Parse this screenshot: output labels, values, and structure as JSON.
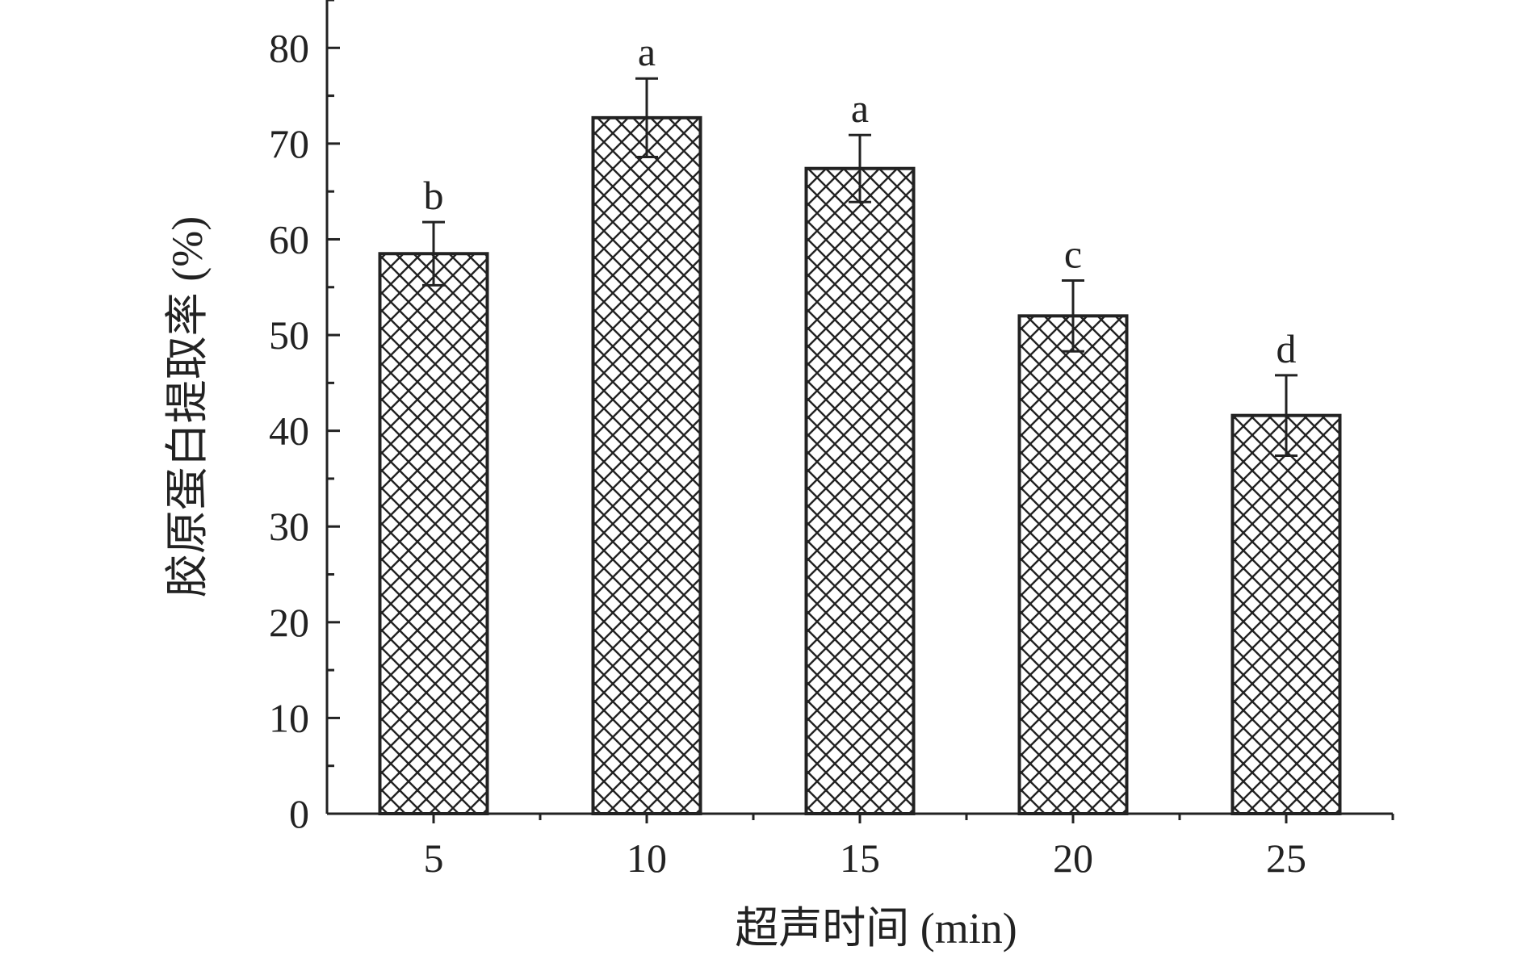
{
  "chart_data": {
    "type": "bar",
    "xlabel": "超声时间 (min)",
    "ylabel": "胶原蛋白提取率 (%)",
    "categories": [
      "5",
      "10",
      "15",
      "20",
      "25"
    ],
    "series": [
      {
        "values": [
          58.5,
          72.7,
          67.4,
          52.0,
          41.6
        ],
        "errors": [
          3.3,
          4.1,
          3.5,
          3.7,
          4.2
        ],
        "significance": [
          "b",
          "a",
          "a",
          "c",
          "d"
        ]
      }
    ],
    "ylim": [
      0,
      85
    ],
    "yticks": [
      "0",
      "10",
      "20",
      "30",
      "40",
      "50",
      "60",
      "70",
      "80"
    ],
    "ytick_values": [
      0,
      10,
      20,
      30,
      40,
      50,
      60,
      70,
      80
    ],
    "bar_pattern": "crosshatch",
    "colors": {
      "bar_fill": "#ffffff",
      "hatch": "#222222",
      "axis": "#222222"
    },
    "grid": false,
    "legend": "none"
  }
}
